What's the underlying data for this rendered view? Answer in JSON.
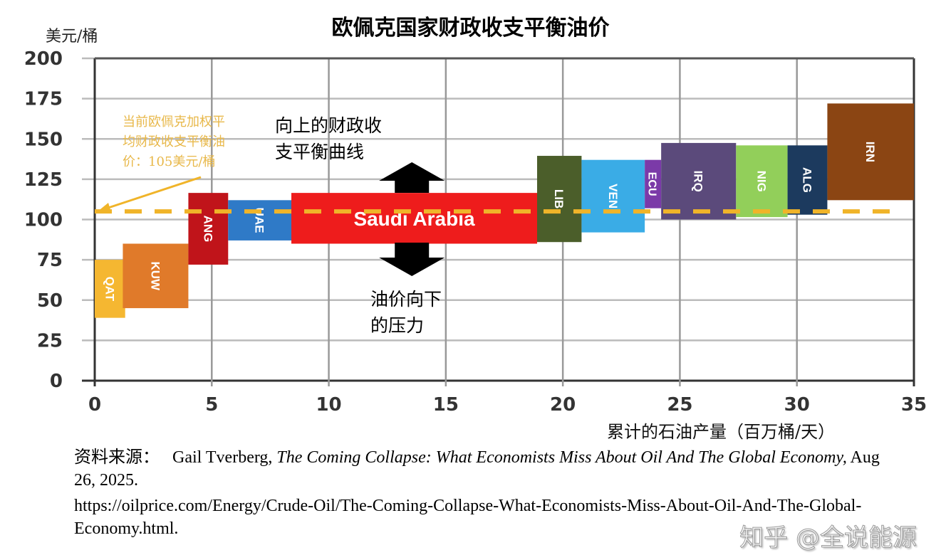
{
  "chart_data": {
    "type": "bar",
    "subtype": "variable-width cost curve",
    "title": "欧佩克国家财政收支平衡油价",
    "ylabel": "美元/桶",
    "xlabel": "累计的石油产量（百万桶/天）",
    "xlim": [
      0,
      35
    ],
    "ylim": [
      0,
      200
    ],
    "xticks": [
      0,
      5,
      10,
      15,
      20,
      25,
      30,
      35
    ],
    "yticks": [
      0,
      25,
      50,
      75,
      100,
      125,
      150,
      175,
      200
    ],
    "grid": true,
    "bars": [
      {
        "label": "QAT",
        "x0": 0,
        "x1": 1.3,
        "y0": 39,
        "y1": 75,
        "color": "#f5b731"
      },
      {
        "label": "KUW",
        "x0": 1.2,
        "x1": 4.0,
        "y0": 45,
        "y1": 85,
        "color": "#e07a2a"
      },
      {
        "label": "ANG",
        "x0": 4.0,
        "x1": 5.7,
        "y0": 72,
        "y1": 116.5,
        "color": "#c0141a"
      },
      {
        "label": "UAE",
        "x0": 5.7,
        "x1": 8.4,
        "y0": 87,
        "y1": 112,
        "color": "#2f7ac7"
      },
      {
        "label": "Saudi Arabia",
        "x0": 8.4,
        "x1": 18.9,
        "y0": 85,
        "y1": 116.5,
        "color": "#ee1c1c"
      },
      {
        "label": "LIB",
        "x0": 18.9,
        "x1": 20.8,
        "y0": 86,
        "y1": 139.5,
        "color": "#4b5e2a"
      },
      {
        "label": "VEN",
        "x0": 20.8,
        "x1": 23.5,
        "y0": 92,
        "y1": 137,
        "color": "#3aace6"
      },
      {
        "label": "ECU",
        "x0": 23.5,
        "x1": 24.2,
        "y0": 107,
        "y1": 137,
        "color": "#7b3aa8"
      },
      {
        "label": "IRQ",
        "x0": 24.2,
        "x1": 27.4,
        "y0": 100,
        "y1": 147.5,
        "color": "#5b4a7b"
      },
      {
        "label": "NIG",
        "x0": 27.4,
        "x1": 29.6,
        "y0": 101.5,
        "y1": 146,
        "color": "#92cf5a"
      },
      {
        "label": "ALG",
        "x0": 29.6,
        "x1": 31.3,
        "y0": 103,
        "y1": 146,
        "color": "#1c3a5e"
      },
      {
        "label": "IRN",
        "x0": 31.3,
        "x1": 35,
        "y0": 112,
        "y1": 172,
        "color": "#8b4513"
      }
    ],
    "reference_line": {
      "y": 105,
      "style": "dashed",
      "color": "#f0b429"
    },
    "annotations": {
      "opec_average": [
        "当前欧佩克加权平",
        "均财政收支平衡油",
        "价：105美元/桶"
      ],
      "upward": [
        "向上的财政收",
        "支平衡曲线"
      ],
      "downward": [
        "油价向下",
        "的压力"
      ]
    }
  },
  "source": {
    "prefix": "资料来源：",
    "author": "Gail Tverberg, ",
    "work": "The Coming Collapse: What Economists Miss About Oil And The Global Economy,",
    "date": " Aug 26, 2025.",
    "url": "https://oilprice.com/Energy/Crude-Oil/The-Coming-Collapse-What-Economists-Miss-About-Oil-And-The-Global-Economy.html."
  },
  "watermark": "知乎 @全说能源"
}
